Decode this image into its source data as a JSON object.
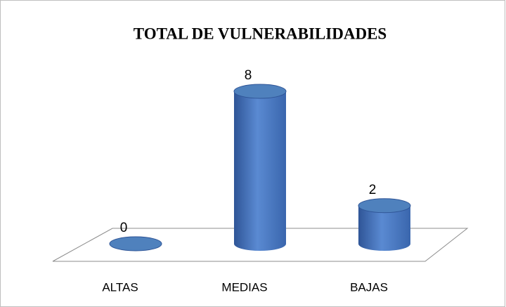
{
  "chart_data": {
    "type": "bar",
    "title": "TOTAL DE VULNERABILIDADES",
    "categories": [
      "ALTAS",
      "MEDIAS",
      "BAJAS"
    ],
    "values": [
      0,
      8,
      2
    ],
    "color": "#4f81bd"
  }
}
